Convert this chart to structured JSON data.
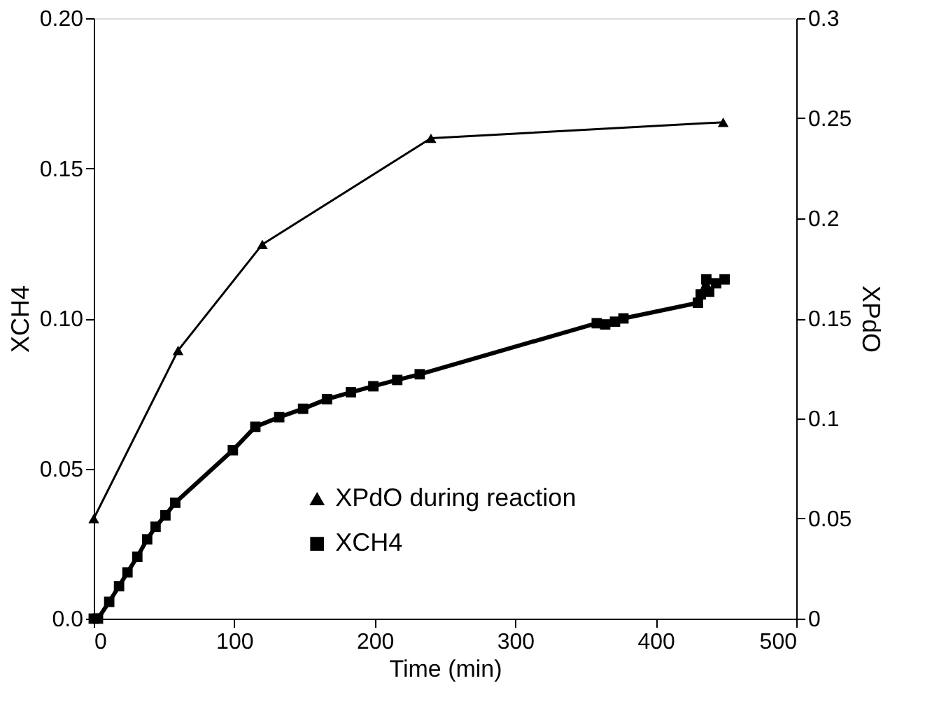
{
  "chart_data": {
    "type": "line",
    "xlabel": "Time (min)",
    "ylabel": "XCH4",
    "y2label": "XPdO",
    "xlim": [
      0,
      500
    ],
    "xticks": [
      0,
      100,
      200,
      300,
      400,
      500
    ],
    "ylim": [
      0,
      0.2
    ],
    "yticks": [
      {
        "value": 0,
        "label": "0.0"
      },
      0.05,
      {
        "value": 0.1,
        "label": "0.10"
      },
      0.15,
      {
        "value": 0.2,
        "label": "0.20"
      }
    ],
    "y2lim": [
      0,
      0.3
    ],
    "y2ticks": [
      0,
      0.05,
      0.1,
      0.15,
      0.2,
      0.25,
      0.3
    ],
    "legend": "bottom",
    "grid": false,
    "series": [
      {
        "name": "XPdO during reaction",
        "color": "#000000",
        "axis": "y2",
        "marker": "triangle",
        "x": [
          0,
          60,
          120,
          240,
          448
        ],
        "values": [
          0.05,
          0.134,
          0.187,
          0.24,
          0.248
        ]
      },
      {
        "name": "XCH4",
        "color": "#000000",
        "marker": "square",
        "x": [
          0,
          3,
          11,
          18,
          24,
          31,
          38,
          44,
          51,
          58,
          99,
          115,
          132,
          149,
          166,
          183,
          199,
          216,
          232,
          358,
          364,
          371,
          377,
          430,
          432,
          436,
          438,
          443,
          449
        ],
        "values": [
          0,
          0,
          0.0056,
          0.0108,
          0.0154,
          0.0206,
          0.0264,
          0.0306,
          0.0344,
          0.0386,
          0.0561,
          0.0639,
          0.0671,
          0.0699,
          0.0731,
          0.0754,
          0.0774,
          0.0795,
          0.0814,
          0.0984,
          0.098,
          0.0989,
          0.1,
          0.1052,
          0.108,
          0.113,
          0.1089,
          0.1117,
          0.113
        ]
      }
    ]
  }
}
